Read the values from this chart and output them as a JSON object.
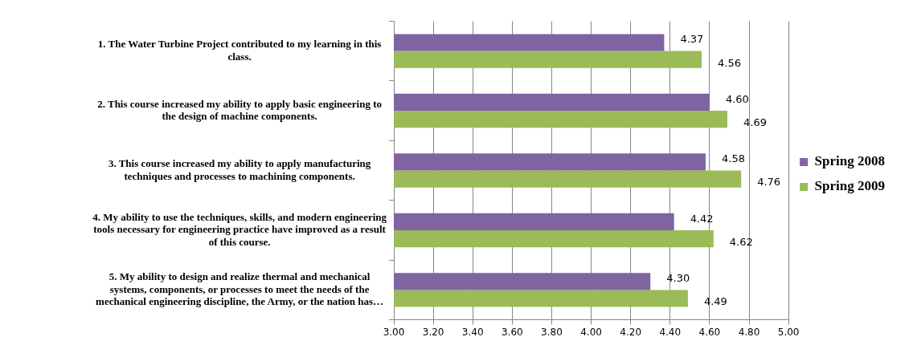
{
  "chart_data": {
    "type": "bar",
    "orientation": "horizontal",
    "categories": [
      "1. The Water Turbine Project contributed to my learning in this class.",
      "2. This course increased my ability to apply basic engineering to the design of machine components.",
      "3. This course increased my ability to apply manufacturing techniques and processes to machining components.",
      "4. My ability to use the techniques, skills, and modern engineering tools necessary for engineering practice have improved as a result of this course.",
      "5. My ability to design and realize thermal and mechanical systems, components, or processes to meet the needs of the mechanical engineering discipline, the Army, or the nation has…"
    ],
    "series": [
      {
        "name": "Spring 2008",
        "color": "#8064a2",
        "values": [
          4.37,
          4.6,
          4.58,
          4.42,
          4.3
        ]
      },
      {
        "name": "Spring 2009",
        "color": "#9bbb59",
        "values": [
          4.56,
          4.69,
          4.76,
          4.62,
          4.49
        ]
      }
    ],
    "xlim": [
      3,
      5
    ],
    "xticks": [
      {
        "value": 3,
        "label": "3.00"
      },
      {
        "value": 3.2,
        "label": "3.20"
      },
      {
        "value": 3.4,
        "label": "3.40"
      },
      {
        "value": 3.6,
        "label": "3.60"
      },
      {
        "value": 3.8,
        "label": "3.80"
      },
      {
        "value": 4,
        "label": "4.00"
      },
      {
        "value": 4.2,
        "label": "4.20"
      },
      {
        "value": 4.4,
        "label": "4.40"
      },
      {
        "value": 4.6,
        "label": "4.60"
      },
      {
        "value": 4.8,
        "label": "4.80"
      },
      {
        "value": 5,
        "label": "5.00"
      }
    ],
    "grid": "x",
    "legend": "right",
    "value_labels": [
      [
        "4.37",
        "4.60",
        "4.58",
        "4.42",
        "4.30"
      ],
      [
        "4.56",
        "4.69",
        "4.76",
        "4.62",
        "4.49"
      ]
    ]
  }
}
